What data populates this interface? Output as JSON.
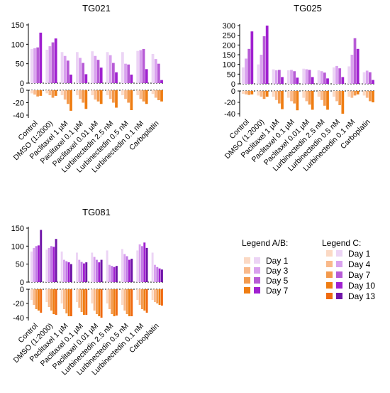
{
  "chart_data": [
    {
      "type": "bar",
      "title": "TG021",
      "categories": [
        "Control",
        "DMSO (1:2000)",
        "Paclitaxel 1 µM",
        "Paclitaxel 0.1 µM",
        "Paclitaxel 0.01 µM",
        "Lurbinectedin 2.5 nM",
        "Lurbinectedin 0.5 nM",
        "Lurbinectedin 0.1 nM",
        "Carboplatin"
      ],
      "y_ticks_top": [
        "150",
        "100",
        "50",
        "0"
      ],
      "y_ticks_bottom": [
        "0",
        "-20",
        "-40"
      ],
      "ylim_top": [
        0,
        150
      ],
      "ylim_bottom": [
        -45,
        0
      ],
      "series": [
        {
          "group": "purple",
          "values": [
            [
              88,
              90,
              92,
              130
            ],
            [
              86,
              95,
              105,
              115
            ],
            [
              80,
              70,
              58,
              22
            ],
            [
              80,
              65,
              52,
              23
            ],
            [
              82,
              70,
              60,
              40
            ],
            [
              80,
              72,
              52,
              28
            ],
            [
              80,
              50,
              48,
              22
            ],
            [
              83,
              85,
              88,
              36
            ],
            [
              75,
              62,
              50,
              8
            ]
          ]
        },
        {
          "group": "orange",
          "values": [
            [
              -5,
              -7,
              -10,
              -9
            ],
            [
              -5,
              -8,
              -12,
              -9
            ],
            [
              -8,
              -15,
              -22,
              -33
            ],
            [
              -8,
              -14,
              -20,
              -30
            ],
            [
              -8,
              -15,
              -18,
              -22
            ],
            [
              -8,
              -14,
              -20,
              -28
            ],
            [
              -8,
              -14,
              -20,
              -32
            ],
            [
              -8,
              -14,
              -18,
              -22
            ],
            [
              -6,
              -12,
              -16,
              -18
            ]
          ]
        }
      ]
    },
    {
      "type": "bar",
      "title": "TG025",
      "categories": [
        "Control",
        "DMSO (1:2000)",
        "Paclitaxel 1 µM",
        "Paclitaxel 0.1 µM",
        "Paclitaxel 0.01 µM",
        "Lurbinectedin 2.5 nM",
        "Lurbinectedin 0.5 nM",
        "Lurbinectedin 0.1 nM",
        "Carboplatin"
      ],
      "y_ticks_top": [
        "300",
        "250",
        "200",
        "150",
        "100",
        "50",
        "0"
      ],
      "y_ticks_bottom": [
        "0",
        "-20",
        "-40"
      ],
      "ylim_top": [
        0,
        300
      ],
      "ylim_bottom": [
        -45,
        0
      ],
      "series": [
        {
          "group": "purple",
          "values": [
            [
              85,
              130,
              180,
              270
            ],
            [
              100,
              150,
              245,
              300
            ],
            [
              75,
              70,
              72,
              35
            ],
            [
              70,
              72,
              65,
              32
            ],
            [
              78,
              75,
              72,
              35
            ],
            [
              70,
              65,
              58,
              28
            ],
            [
              85,
              92,
              80,
              35
            ],
            [
              90,
              150,
              235,
              180
            ],
            [
              60,
              68,
              60,
              20
            ]
          ]
        },
        {
          "group": "orange",
          "values": [
            [
              -5,
              -6,
              -7,
              -6
            ],
            [
              -8,
              -10,
              -14,
              -10
            ],
            [
              -10,
              -16,
              -22,
              -32
            ],
            [
              -12,
              -18,
              -22,
              -34
            ],
            [
              -12,
              -18,
              -24,
              -33
            ],
            [
              -10,
              -16,
              -26,
              -33
            ],
            [
              -10,
              -18,
              -25,
              -40
            ],
            [
              -10,
              -12,
              -8,
              -6
            ],
            [
              -8,
              -12,
              -18,
              -20
            ]
          ]
        }
      ]
    },
    {
      "type": "bar",
      "title": "TG081",
      "categories": [
        "Control",
        "DMSO (1:2000)",
        "Paclitaxel 1 µM",
        "Paclitaxel 0.1 µM",
        "Paclitaxel 0.01 µM",
        "Lurbinectedin 2.5 nM",
        "Lurbinectedin 0.5 nM",
        "Lurbinectedin 0.1 nM",
        "Carboplatin"
      ],
      "y_ticks_top": [
        "150",
        "100",
        "50",
        "0"
      ],
      "y_ticks_bottom": [
        "0",
        "-20",
        "-40"
      ],
      "ylim_top": [
        0,
        150
      ],
      "ylim_bottom": [
        -45,
        0
      ],
      "series": [
        {
          "group": "purple",
          "values": [
            [
              85,
              95,
              100,
              102,
              145
            ],
            [
              90,
              95,
              100,
              98,
              120
            ],
            [
              85,
              62,
              58,
              55,
              50
            ],
            [
              82,
              62,
              56,
              52,
              55
            ],
            [
              82,
              70,
              62,
              55,
              62
            ],
            [
              88,
              48,
              45,
              42,
              45
            ],
            [
              92,
              78,
              72,
              62,
              65
            ],
            [
              88,
              105,
              100,
              110,
              95
            ],
            [
              82,
              48,
              42,
              38,
              35
            ]
          ]
        },
        {
          "group": "orange",
          "values": [
            [
              -15,
              -22,
              -28,
              -30,
              -33
            ],
            [
              -18,
              -25,
              -30,
              -35,
              -36
            ],
            [
              -20,
              -28,
              -34,
              -38,
              -38
            ],
            [
              -18,
              -26,
              -32,
              -36,
              -36
            ],
            [
              -20,
              -30,
              -35,
              -38,
              -40
            ],
            [
              -20,
              -28,
              -35,
              -38,
              -37
            ],
            [
              -22,
              -30,
              -35,
              -38,
              -38
            ],
            [
              -15,
              -22,
              -28,
              -30,
              -33
            ],
            [
              -15,
              -18,
              -20,
              -22,
              -23
            ]
          ]
        }
      ]
    }
  ],
  "legend_ab": {
    "title": "Legend A/B:",
    "items": [
      {
        "label": "Day 1",
        "orange": "#fbd9c4",
        "purple": "#ecd4f5"
      },
      {
        "label": "Day 3",
        "orange": "#f9b98a",
        "purple": "#d9a1ee"
      },
      {
        "label": "Day 5",
        "orange": "#f39a4d",
        "purple": "#b75bd6"
      },
      {
        "label": "Day 7",
        "orange": "#ef7d12",
        "purple": "#a020d0"
      }
    ]
  },
  "legend_c": {
    "title": "Legend C:",
    "items": [
      {
        "label": "Day 1",
        "orange": "#fbd9c4",
        "purple": "#ecd4f5"
      },
      {
        "label": "Day 4",
        "orange": "#f9b98a",
        "purple": "#d9a1ee"
      },
      {
        "label": "Day 7",
        "orange": "#f39a4d",
        "purple": "#b75bd6"
      },
      {
        "label": "Day 10",
        "orange": "#ef7d12",
        "purple": "#a020d0"
      },
      {
        "label": "Day 13",
        "orange": "#f06a10",
        "purple": "#7015a8"
      }
    ]
  },
  "colors": {
    "purple4": [
      "#ecd4f5",
      "#d9a1ee",
      "#b75bd6",
      "#a020d0"
    ],
    "orange4": [
      "#fbd9c4",
      "#f9b98a",
      "#f39a4d",
      "#ef7d12"
    ],
    "purple5": [
      "#ecd4f5",
      "#d9a1ee",
      "#c07ae4",
      "#a020d0",
      "#7015a8"
    ],
    "orange5": [
      "#fbd9c4",
      "#f9b98a",
      "#f39a4d",
      "#ef7d12",
      "#f06a10"
    ]
  }
}
